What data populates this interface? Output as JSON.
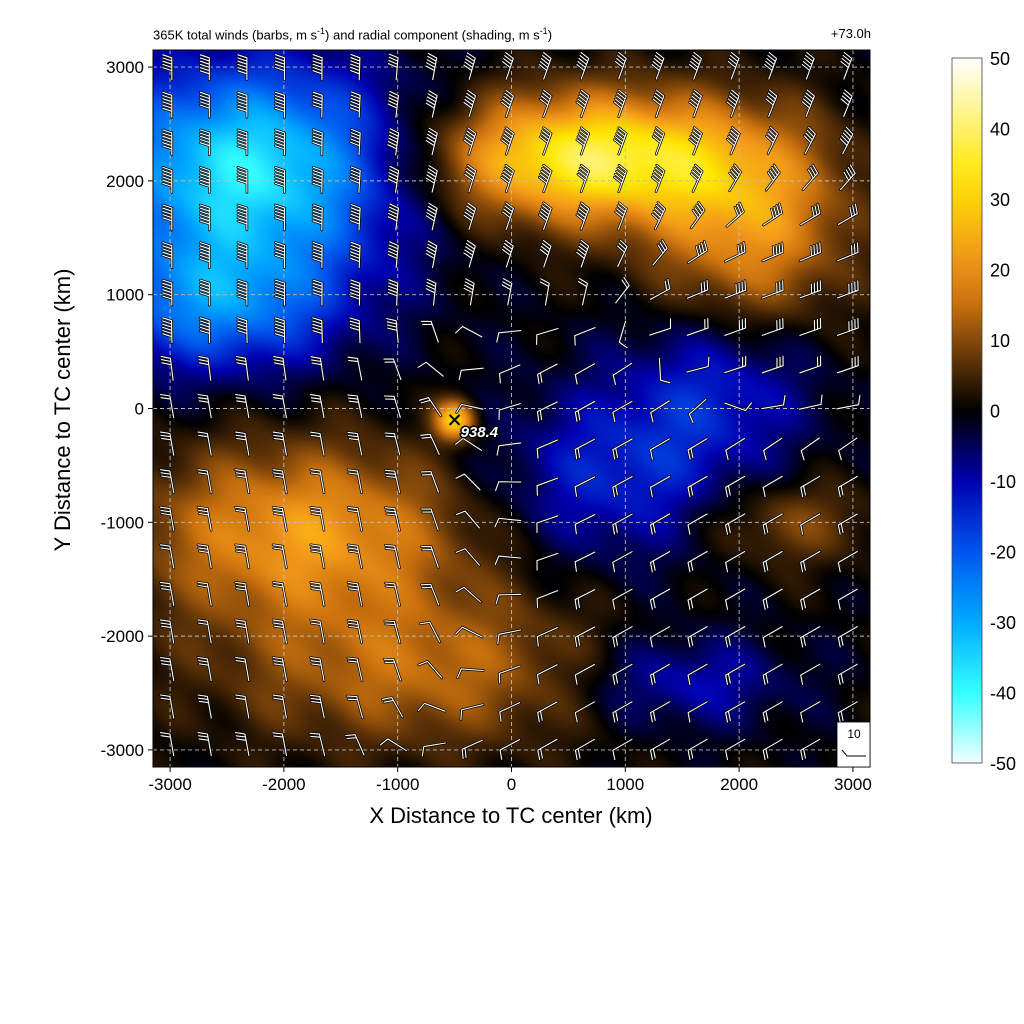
{
  "title": {
    "main": "365K total winds (barbs, m s",
    "sup1": "-1",
    "mid": ") and radial component (shading, m s",
    "sup2": "-1",
    "end": ")",
    "time": "+73.0h"
  },
  "chart_data": {
    "type": "heatmap",
    "xlabel": "X Distance to TC center (km)",
    "ylabel": "Y Distance to TC center (km)",
    "xlim": [
      -3150,
      3150
    ],
    "ylim": [
      -3150,
      3150
    ],
    "xticks": [
      -3000,
      -2000,
      -1000,
      0,
      1000,
      2000,
      3000
    ],
    "yticks": [
      -3000,
      -2000,
      -1000,
      0,
      1000,
      2000,
      3000
    ],
    "grid": true,
    "center_marker": {
      "x": -500,
      "y": -100,
      "label": "938.4"
    },
    "barb_reference": {
      "label": "10"
    },
    "colorbar": {
      "range": [
        -50,
        50
      ],
      "ticks": [
        50,
        40,
        30,
        20,
        10,
        0,
        -10,
        -20,
        -30,
        -40,
        -50
      ],
      "colors": [
        {
          "v": -50,
          "c": "#f2ffff"
        },
        {
          "v": -40,
          "c": "#33ffff"
        },
        {
          "v": -30,
          "c": "#00aaff"
        },
        {
          "v": -20,
          "c": "#0055ee"
        },
        {
          "v": -10,
          "c": "#0000b0"
        },
        {
          "v": 0,
          "c": "#000000"
        },
        {
          "v": 8,
          "c": "#6b3a08"
        },
        {
          "v": 15,
          "c": "#c8700e"
        },
        {
          "v": 22,
          "c": "#f49a1a"
        },
        {
          "v": 33,
          "c": "#ffe800"
        },
        {
          "v": 50,
          "c": "#ffffff"
        }
      ]
    },
    "field_blobs": [
      {
        "x": -2300,
        "y": 2100,
        "rx": 1600,
        "ry": 1100,
        "v": -38
      },
      {
        "x": -2600,
        "y": 900,
        "rx": 1300,
        "ry": 700,
        "v": -22
      },
      {
        "x": 700,
        "y": 2200,
        "rx": 1600,
        "ry": 650,
        "v": 38
      },
      {
        "x": 2100,
        "y": 1600,
        "rx": 1000,
        "ry": 1000,
        "v": 20
      },
      {
        "x": -1800,
        "y": -1100,
        "rx": 1700,
        "ry": 900,
        "v": 22
      },
      {
        "x": -800,
        "y": -2300,
        "rx": 2000,
        "ry": 800,
        "v": 14
      },
      {
        "x": 900,
        "y": -600,
        "rx": 1300,
        "ry": 900,
        "v": -14
      },
      {
        "x": 1800,
        "y": 200,
        "rx": 1000,
        "ry": 800,
        "v": -12
      },
      {
        "x": 1500,
        "y": -2400,
        "rx": 1100,
        "ry": 500,
        "v": -12
      },
      {
        "x": 2400,
        "y": -1000,
        "rx": 900,
        "ry": 450,
        "v": 10
      },
      {
        "x": -500,
        "y": -100,
        "rx": 200,
        "ry": 200,
        "v": 30
      }
    ],
    "barbs": {
      "spacing_km": 330,
      "regions": [
        {
          "x": -2300,
          "y": 2100,
          "rx": 1500,
          "ry": 1000,
          "dir": 270,
          "speed": 55
        },
        {
          "x": 600,
          "y": 2100,
          "rx": 1700,
          "ry": 800,
          "dir": 250,
          "speed": 45
        },
        {
          "x": 2200,
          "y": 1000,
          "rx": 900,
          "ry": 900,
          "dir": 200,
          "speed": 35
        },
        {
          "x": -2000,
          "y": -1200,
          "rx": 1800,
          "ry": 1100,
          "dir": 280,
          "speed": 25
        },
        {
          "x": 1200,
          "y": -1400,
          "rx": 1600,
          "ry": 1800,
          "dir": 30,
          "speed": 15
        }
      ]
    }
  }
}
